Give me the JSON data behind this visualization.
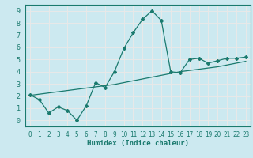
{
  "x": [
    0,
    1,
    2,
    3,
    4,
    5,
    6,
    7,
    8,
    9,
    10,
    11,
    12,
    13,
    14,
    15,
    16,
    17,
    18,
    19,
    20,
    21,
    22,
    23
  ],
  "y_line": [
    2.1,
    1.7,
    0.6,
    1.1,
    0.8,
    0.0,
    1.2,
    3.1,
    2.7,
    4.0,
    5.9,
    7.2,
    8.3,
    9.0,
    8.2,
    4.0,
    3.9,
    5.0,
    5.1,
    4.7,
    4.9,
    5.1,
    5.1,
    5.2
  ],
  "y_trend": [
    2.05,
    2.15,
    2.25,
    2.35,
    2.45,
    2.55,
    2.65,
    2.75,
    2.85,
    2.95,
    3.1,
    3.25,
    3.4,
    3.55,
    3.7,
    3.85,
    4.0,
    4.1,
    4.2,
    4.3,
    4.4,
    4.55,
    4.7,
    4.85
  ],
  "line_color": "#1a7a6e",
  "background_color": "#cce9f0",
  "grid_color": "#e8e8e8",
  "xlabel": "Humidex (Indice chaleur)",
  "ylim": [
    -0.5,
    9.5
  ],
  "xlim": [
    -0.5,
    23.5
  ],
  "yticks": [
    0,
    1,
    2,
    3,
    4,
    5,
    6,
    7,
    8,
    9
  ],
  "xticks": [
    0,
    1,
    2,
    3,
    4,
    5,
    6,
    7,
    8,
    9,
    10,
    11,
    12,
    13,
    14,
    15,
    16,
    17,
    18,
    19,
    20,
    21,
    22,
    23
  ]
}
